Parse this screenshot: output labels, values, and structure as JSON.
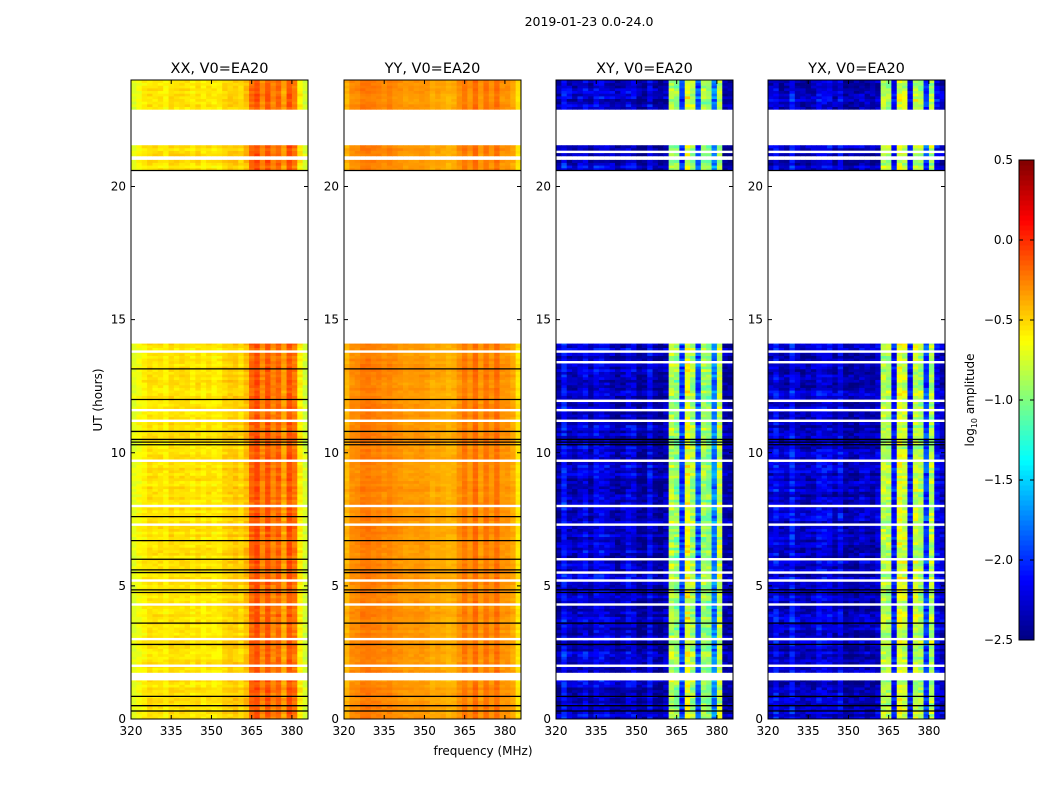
{
  "suptitle": "2019-01-23 0.0-24.0",
  "ylabel": "UT (hours)",
  "xlabel": "frequency (MHz)",
  "chart_data": {
    "type": "heatmap",
    "title": "2019-01-23 0.0-24.0",
    "xlabel": "frequency (MHz)",
    "ylabel": "UT (hours)",
    "xlim": [
      320,
      386
    ],
    "ylim": [
      0,
      24
    ],
    "xticks": [
      "320",
      "335",
      "350",
      "365",
      "380"
    ],
    "yticks": [
      "0",
      "5",
      "10",
      "15",
      "20"
    ],
    "freq_bin_start_mhz": 320,
    "freq_bin_width_mhz": 2,
    "time_bin_hours": 0.1,
    "panels": [
      {
        "title": "XX, V0=EA20",
        "noise": 0.1,
        "spectrum": [
          -0.72,
          -0.62,
          -0.6,
          -0.58,
          -0.57,
          -0.57,
          -0.56,
          -0.56,
          -0.56,
          -0.56,
          -0.56,
          -0.56,
          -0.56,
          -0.55,
          -0.55,
          -0.55,
          -0.54,
          -0.53,
          -0.52,
          -0.5,
          -0.48,
          -0.42,
          -0.2,
          -0.08,
          -0.25,
          -0.1,
          -0.3,
          -0.2,
          -0.35,
          -0.1,
          -0.25,
          -0.55,
          -0.72
        ],
        "coverage": [
          [
            0,
            1.45
          ],
          [
            1.75,
            14.1
          ],
          [
            20.6,
            21.0
          ],
          [
            21.15,
            21.55
          ],
          [
            22.9,
            24
          ]
        ],
        "black_lines": [
          0.3,
          0.5,
          0.85,
          2.8,
          3.6,
          4.75,
          4.85,
          5.5,
          5.6,
          6.0,
          6.7,
          7.6,
          10.3,
          10.4,
          10.5,
          10.8,
          12.0,
          13.15,
          20.6
        ],
        "white_lines": [
          2.0,
          3.0,
          4.3,
          5.2,
          7.3,
          8.0,
          9.7,
          11.2,
          11.6,
          13.8
        ]
      },
      {
        "title": "YY, V0=EA20",
        "noise": 0.06,
        "spectrum": [
          -0.42,
          -0.32,
          -0.27,
          -0.25,
          -0.24,
          -0.24,
          -0.25,
          -0.26,
          -0.27,
          -0.28,
          -0.3,
          -0.31,
          -0.32,
          -0.33,
          -0.34,
          -0.35,
          -0.36,
          -0.37,
          -0.38,
          -0.38,
          -0.38,
          -0.33,
          -0.22,
          -0.3,
          -0.2,
          -0.32,
          -0.22,
          -0.3,
          -0.2,
          -0.3,
          -0.3,
          -0.4,
          -0.55
        ],
        "coverage": [
          [
            0,
            1.45
          ],
          [
            1.75,
            14.1
          ],
          [
            20.6,
            21.0
          ],
          [
            21.15,
            21.55
          ],
          [
            22.9,
            24
          ]
        ],
        "black_lines": [
          0.3,
          0.5,
          0.85,
          2.8,
          3.6,
          4.75,
          4.85,
          5.5,
          5.6,
          6.0,
          6.7,
          7.6,
          10.3,
          10.4,
          10.5,
          10.8,
          12.0,
          13.15,
          20.6
        ],
        "white_lines": [
          2.0,
          3.0,
          4.3,
          5.2,
          7.3,
          8.0,
          9.7,
          11.2,
          11.6,
          13.8
        ]
      },
      {
        "title": "XY, V0=EA20",
        "noise": 0.3,
        "spectrum": [
          -2.25,
          -2.2,
          -2.25,
          -2.3,
          -2.2,
          -2.3,
          -2.25,
          -2.3,
          -2.2,
          -2.3,
          -2.3,
          -2.25,
          -2.3,
          -2.3,
          -2.3,
          -2.3,
          -2.3,
          -2.3,
          -2.3,
          -2.3,
          -2.35,
          -0.95,
          -0.85,
          -2.0,
          -0.7,
          -0.8,
          -2.0,
          -0.9,
          -0.95,
          -1.9,
          -0.9,
          -2.3,
          -2.35
        ],
        "coverage": [
          [
            0,
            1.45
          ],
          [
            1.75,
            14.1
          ],
          [
            20.6,
            21.0
          ],
          [
            21.15,
            21.55
          ],
          [
            22.9,
            24
          ]
        ],
        "black_lines": [
          0.3,
          0.5,
          0.85,
          2.8,
          3.6,
          4.75,
          4.85,
          10.3,
          10.4,
          10.5,
          20.6
        ],
        "white_lines": [
          2.0,
          3.0,
          4.3,
          5.2,
          5.5,
          6.0,
          7.3,
          8.0,
          9.7,
          11.2,
          11.6,
          11.95,
          13.4,
          13.8,
          21.3
        ]
      },
      {
        "title": "YX, V0=EA20",
        "noise": 0.3,
        "spectrum": [
          -2.25,
          -2.2,
          -2.25,
          -2.3,
          -2.2,
          -2.3,
          -2.25,
          -2.3,
          -2.2,
          -2.3,
          -2.3,
          -2.25,
          -2.3,
          -2.3,
          -2.3,
          -2.3,
          -2.3,
          -2.3,
          -2.3,
          -2.3,
          -2.35,
          -0.95,
          -0.85,
          -2.0,
          -0.7,
          -0.8,
          -2.0,
          -0.9,
          -0.95,
          -1.9,
          -0.9,
          -2.3,
          -2.35
        ],
        "coverage": [
          [
            0,
            1.45
          ],
          [
            1.75,
            14.1
          ],
          [
            20.6,
            21.0
          ],
          [
            21.15,
            21.55
          ],
          [
            22.9,
            24
          ]
        ],
        "black_lines": [
          0.3,
          0.5,
          0.85,
          2.8,
          3.6,
          4.75,
          4.85,
          10.3,
          10.4,
          10.5,
          20.6
        ],
        "white_lines": [
          2.0,
          3.0,
          4.3,
          5.2,
          5.5,
          6.0,
          7.3,
          8.0,
          9.7,
          11.2,
          11.6,
          11.95,
          13.4,
          13.8,
          21.3
        ]
      }
    ],
    "colorbar": {
      "colormap": "jet",
      "range": [
        -2.5,
        0.5
      ],
      "ticks": [
        "0.5",
        "0.0",
        "−0.5",
        "−1.0",
        "−1.5",
        "−2.0",
        "−2.5"
      ],
      "tick_values": [
        0.5,
        0.0,
        -0.5,
        -1.0,
        -1.5,
        -2.0,
        -2.5
      ],
      "label_prefix": "log",
      "label_sub": "10",
      "label_suffix": " amplitude"
    }
  }
}
